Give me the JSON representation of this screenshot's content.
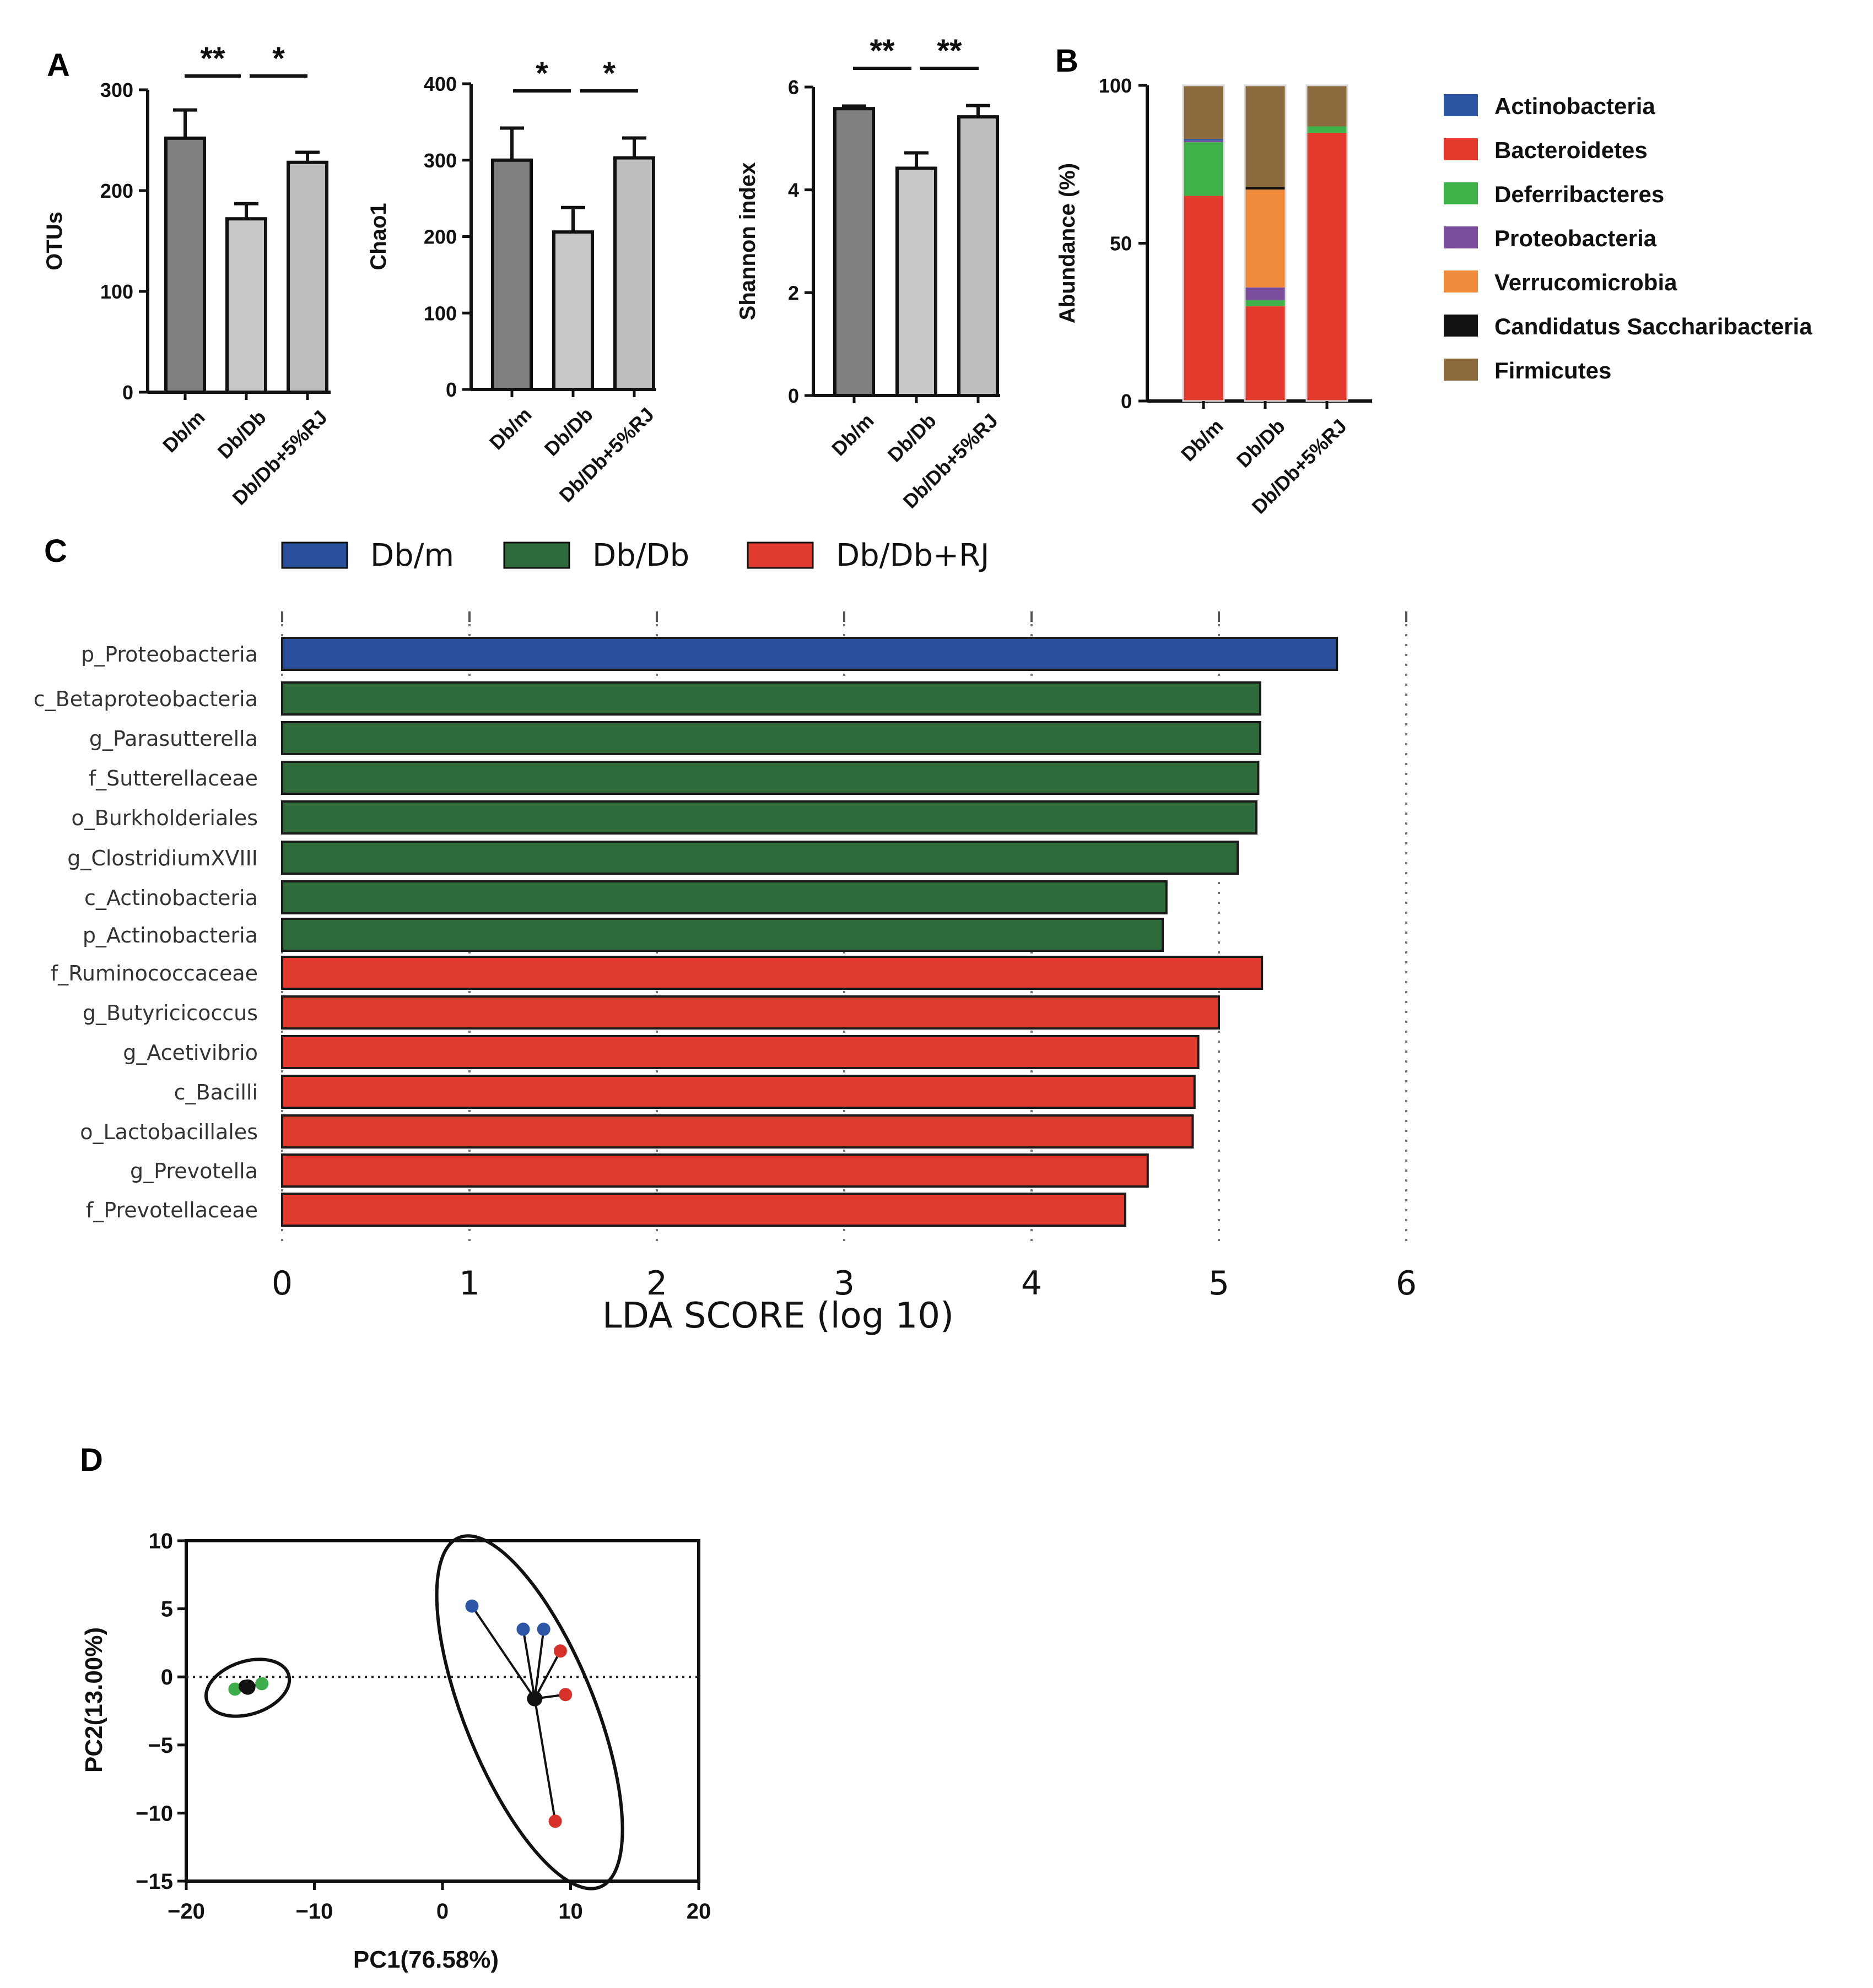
{
  "panel_labels": {
    "a": "A",
    "b": "B",
    "c": "C",
    "d": "D"
  },
  "colors": {
    "dark_gray": "#7f7f7f",
    "light_gray": "#c8c8c8",
    "mid_gray": "#bdbdbd",
    "blue": "#2a4f9a",
    "green_bar": "#2f6b3a",
    "red_bar": "#e03a2f",
    "actinobacteria": "#2c56a3",
    "bacteroidetes": "#e33a2c",
    "deferribacteres": "#3fb34a",
    "proteobacteria": "#7a4e9c",
    "verrucomicrobia": "#ef8b3a",
    "candidatus": "#111111",
    "firmicutes": "#8d6a3c",
    "pca_blue": "#2d56a6",
    "pca_red": "#d8312a",
    "pca_green": "#3eae4c",
    "pca_black": "#111111"
  },
  "chart_data": [
    {
      "id": "otus",
      "type": "bar",
      "categories": [
        "Db/m",
        "Db/Db",
        "Db/Db+5%RJ"
      ],
      "values": [
        252,
        172,
        228
      ],
      "errors": [
        28,
        15,
        10
      ],
      "ylabel": "OTUs",
      "ylim": [
        0,
        300
      ],
      "yticks": [
        "0",
        "100",
        "200",
        "300"
      ],
      "significance": [
        "**",
        "*"
      ]
    },
    {
      "id": "chao1",
      "type": "bar",
      "categories": [
        "Db/m",
        "Db/Db",
        "Db/Db+5%RJ"
      ],
      "values": [
        300,
        206,
        303
      ],
      "errors": [
        42,
        32,
        26
      ],
      "ylabel": "Chao1",
      "ylim": [
        0,
        400
      ],
      "yticks": [
        "0",
        "100",
        "200",
        "300",
        "400"
      ],
      "significance": [
        "*",
        "*"
      ]
    },
    {
      "id": "shannon",
      "type": "bar",
      "categories": [
        "Db/m",
        "Db/Db",
        "Db/Db+5%RJ"
      ],
      "values": [
        5.58,
        4.42,
        5.42
      ],
      "errors": [
        0.05,
        0.3,
        0.22
      ],
      "ylabel": "Shannon index",
      "ylim": [
        0,
        6
      ],
      "yticks": [
        "0",
        "2",
        "4",
        "6"
      ],
      "significance": [
        "**",
        "**"
      ]
    },
    {
      "id": "abundance",
      "type": "bar",
      "stacked": true,
      "categories": [
        "Db/m",
        "Db/Db",
        "Db/Db+5%RJ"
      ],
      "ylabel": "Abundance (%)",
      "ylim": [
        0,
        100
      ],
      "yticks": [
        "0",
        "50",
        "100"
      ],
      "series": [
        {
          "name": "Bacteroidetes",
          "color_key": "bacteroidetes",
          "values": [
            65,
            30,
            85
          ]
        },
        {
          "name": "Deferribacteres",
          "color_key": "deferribacteres",
          "values": [
            17,
            2,
            2
          ]
        },
        {
          "name": "Proteobacteria",
          "color_key": "proteobacteria",
          "values": [
            0.5,
            4,
            0
          ]
        },
        {
          "name": "Verrucomicrobia",
          "color_key": "verrucomicrobia",
          "values": [
            0,
            31,
            0
          ]
        },
        {
          "name": "Candidatus Saccharibacteria",
          "color_key": "candidatus",
          "values": [
            0,
            0.8,
            0
          ]
        },
        {
          "name": "Actinobacteria",
          "color_key": "actinobacteria",
          "values": [
            0.5,
            0,
            0
          ]
        },
        {
          "name": "Firmicutes",
          "color_key": "firmicutes",
          "values": [
            17,
            32.2,
            13
          ]
        }
      ],
      "legend": [
        "Actinobacteria",
        "Bacteroidetes",
        "Deferribacteres",
        "Proteobacteria",
        "Verrucomicrobia",
        "Candidatus Saccharibacteria",
        "Firmicutes"
      ]
    },
    {
      "id": "lefse",
      "type": "bar",
      "orientation": "horizontal",
      "xlabel": "LDA SCORE (log 10)",
      "xlim": [
        0,
        6
      ],
      "xticks": [
        "0",
        "1",
        "2",
        "3",
        "4",
        "5",
        "6"
      ],
      "legend": [
        {
          "label": "Db/m",
          "color_key": "blue"
        },
        {
          "label": "Db/Db",
          "color_key": "green_bar"
        },
        {
          "label": "Db/Db+RJ",
          "color_key": "red_bar"
        }
      ],
      "categories": [
        "p_Proteobacteria",
        "c_Betaproteobacteria",
        "g_Parasutterella",
        "f_Sutterellaceae",
        "o_Burkholderiales",
        "g_ClostridiumXVIII",
        "c_Actinobacteria",
        "p_Actinobacteria",
        "f_Ruminococcaceae",
        "g_Butyricicoccus",
        "g_Acetivibrio",
        "c_Bacilli",
        "o_Lactobacillales",
        "g_Prevotella",
        "f_Prevotellaceae"
      ],
      "values": [
        5.63,
        5.22,
        5.22,
        5.21,
        5.2,
        5.1,
        4.72,
        4.7,
        5.23,
        5.0,
        4.89,
        4.87,
        4.86,
        4.62,
        4.5
      ],
      "groups": [
        "Db/m",
        "Db/Db",
        "Db/Db",
        "Db/Db",
        "Db/Db",
        "Db/Db",
        "Db/Db",
        "Db/Db",
        "Db/Db+RJ",
        "Db/Db+RJ",
        "Db/Db+RJ",
        "Db/Db+RJ",
        "Db/Db+RJ",
        "Db/Db+RJ",
        "Db/Db+RJ"
      ]
    },
    {
      "id": "pca",
      "type": "scatter",
      "xlabel": "PC1(76.58%)",
      "ylabel": "PC2(13.00%)",
      "xlim": [
        -20,
        20
      ],
      "ylim": [
        -15,
        10
      ],
      "xticks": [
        "−20",
        "−10",
        "0",
        "10",
        "20"
      ],
      "yticks": [
        "10",
        "5",
        "0",
        "−5",
        "−10",
        "−15"
      ],
      "clusters": [
        {
          "centroid": [
            -15.2,
            -0.75
          ],
          "points": [
            {
              "x": -16.2,
              "y": -0.9,
              "color_key": "pca_green"
            },
            {
              "x": -15.4,
              "y": -0.7,
              "color_key": "pca_black"
            },
            {
              "x": -14.1,
              "y": -0.5,
              "color_key": "pca_green"
            }
          ]
        },
        {
          "centroid": [
            7.2,
            -1.6
          ],
          "points": [
            {
              "x": 2.3,
              "y": 5.2,
              "color_key": "pca_blue"
            },
            {
              "x": 6.3,
              "y": 3.5,
              "color_key": "pca_blue"
            },
            {
              "x": 7.9,
              "y": 3.5,
              "color_key": "pca_blue"
            },
            {
              "x": 9.2,
              "y": 1.9,
              "color_key": "pca_red"
            },
            {
              "x": 9.6,
              "y": -1.3,
              "color_key": "pca_red"
            },
            {
              "x": 8.8,
              "y": -10.6,
              "color_key": "pca_red"
            }
          ]
        }
      ]
    }
  ]
}
